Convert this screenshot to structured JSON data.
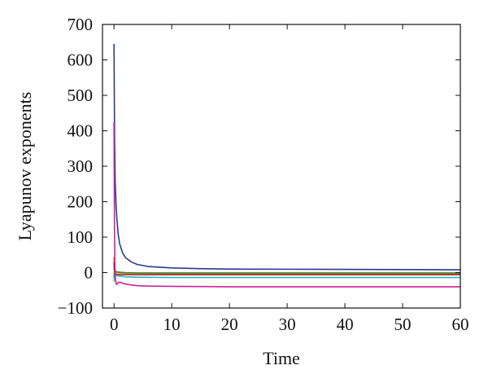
{
  "chart_data": {
    "type": "line",
    "title": "",
    "xlabel": "Time",
    "ylabel": "Lyapunov exponents",
    "xlim": [
      -2,
      60
    ],
    "ylim": [
      -100,
      700
    ],
    "xticks": [
      0,
      10,
      20,
      30,
      40,
      50,
      60
    ],
    "yticks": [
      -100,
      0,
      100,
      200,
      300,
      400,
      500,
      600,
      700
    ],
    "ytick_labels": [
      "−100",
      "0",
      "100",
      "200",
      "300",
      "400",
      "500",
      "600",
      "700"
    ],
    "grid": false,
    "series": [
      {
        "color": "#2b3a8f",
        "x": [
          0,
          0.05,
          0.1,
          0.2,
          0.35,
          0.5,
          0.75,
          1,
          1.5,
          2,
          3,
          4,
          6,
          8,
          10,
          15,
          20,
          30,
          40,
          50,
          60
        ],
        "y": [
          645,
          500,
          380,
          260,
          190,
          150,
          105,
          80,
          55,
          42,
          30,
          23,
          17,
          15,
          13,
          11,
          10,
          9.5,
          9,
          8.5,
          8
        ]
      },
      {
        "color": "#e8762c",
        "x": [
          0,
          0.05,
          0.15,
          0.3,
          0.6,
          1,
          2,
          4,
          10,
          20,
          40,
          60
        ],
        "y": [
          45,
          10,
          4,
          2,
          0,
          -1,
          -2,
          -2,
          -3,
          -3,
          -3,
          -3
        ]
      },
      {
        "color": "#3a8a3a",
        "x": [
          0,
          0.05,
          0.15,
          0.3,
          0.6,
          1,
          2,
          4,
          10,
          20,
          40,
          60
        ],
        "y": [
          -15,
          0,
          5,
          3,
          2,
          1,
          0,
          -1,
          -1,
          -1,
          -1,
          -1
        ]
      },
      {
        "color": "#b02020",
        "x": [
          0,
          0.05,
          0.15,
          0.3,
          0.6,
          1,
          2,
          4,
          10,
          20,
          40,
          60
        ],
        "y": [
          30,
          5,
          -2,
          -4,
          -5,
          -6,
          -6,
          -6,
          -6,
          -6,
          -6,
          -6
        ]
      },
      {
        "color": "#2ab5c6",
        "x": [
          0,
          0.05,
          0.15,
          0.3,
          0.6,
          1,
          2,
          4,
          10,
          20,
          40,
          60
        ],
        "y": [
          -25,
          -15,
          -10,
          -8,
          -9,
          -10,
          -12,
          -13,
          -14,
          -14,
          -14,
          -14
        ]
      },
      {
        "color": "#cc2299",
        "x": [
          0,
          0.03,
          0.08,
          0.15,
          0.25,
          0.4,
          0.6,
          0.8,
          1,
          1.5,
          2,
          3,
          4,
          6,
          10,
          20,
          30,
          40,
          50,
          60
        ],
        "y": [
          425,
          300,
          120,
          20,
          -20,
          -33,
          -32,
          -28,
          -27,
          -30,
          -32,
          -35,
          -37,
          -38,
          -39,
          -40,
          -40,
          -40,
          -40,
          -40
        ]
      }
    ]
  }
}
